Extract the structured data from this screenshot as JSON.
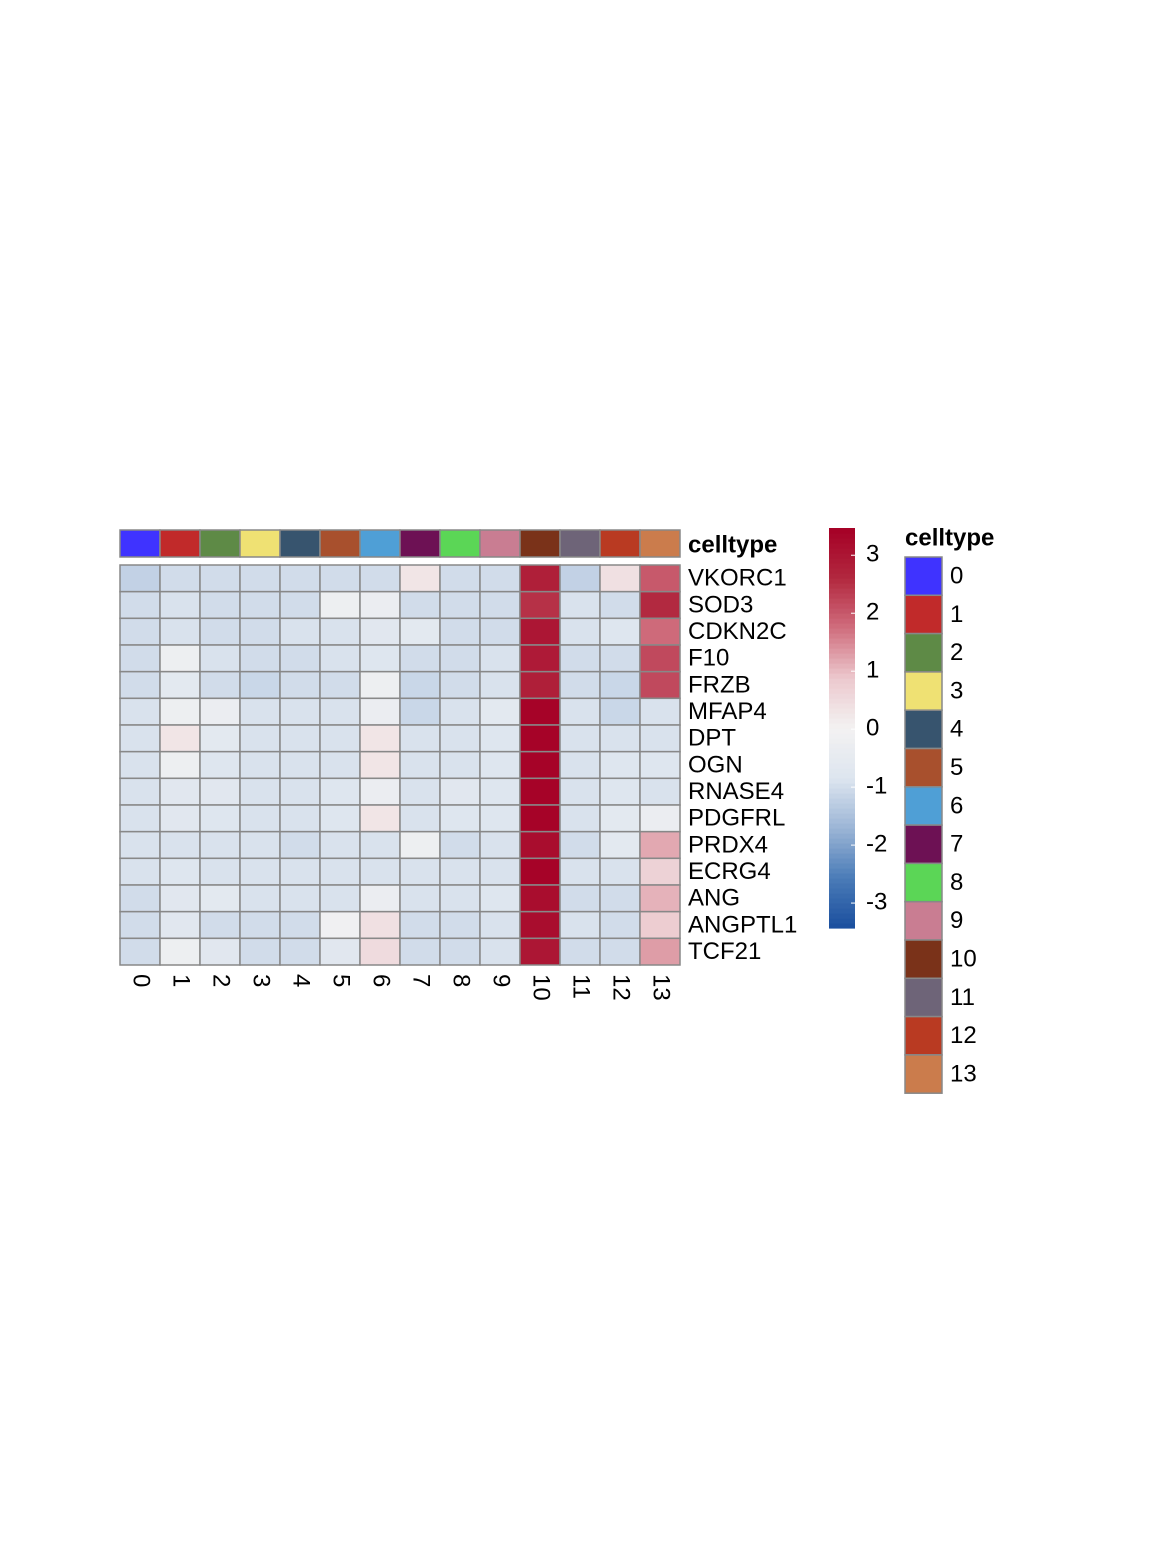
{
  "chart_data": {
    "type": "heatmap",
    "categories": [
      "0",
      "1",
      "2",
      "3",
      "4",
      "5",
      "6",
      "7",
      "8",
      "9",
      "10",
      "11",
      "12",
      "13"
    ],
    "rows": [
      "VKORC1",
      "SOD3",
      "CDKN2C",
      "F10",
      "FRZB",
      "MFAP4",
      "DPT",
      "OGN",
      "RNASE4",
      "PDGFRL",
      "PRDX4",
      "ECRG4",
      "ANG",
      "ANGPTL1",
      "TCF21"
    ],
    "values": [
      [
        -1.2,
        -1.0,
        -1.0,
        -1.0,
        -1.0,
        -1.0,
        -1.0,
        0.3,
        -1.0,
        -1.0,
        2.8,
        -1.2,
        0.4,
        2.0
      ],
      [
        -1.0,
        -0.9,
        -1.0,
        -1.0,
        -1.0,
        -0.2,
        -0.3,
        -1.0,
        -1.0,
        -1.0,
        2.5,
        -0.9,
        -1.0,
        2.6
      ],
      [
        -1.0,
        -0.9,
        -1.0,
        -1.0,
        -0.9,
        -0.9,
        -0.7,
        -0.6,
        -1.0,
        -1.0,
        3.0,
        -0.9,
        -0.8,
        1.8
      ],
      [
        -1.0,
        -0.2,
        -0.9,
        -1.0,
        -1.0,
        -0.9,
        -0.8,
        -1.0,
        -1.0,
        -0.9,
        2.9,
        -1.0,
        -1.0,
        2.2
      ],
      [
        -1.0,
        -0.6,
        -1.0,
        -1.1,
        -1.0,
        -1.0,
        -0.2,
        -1.1,
        -1.0,
        -0.9,
        2.8,
        -1.0,
        -1.1,
        2.2
      ],
      [
        -0.9,
        -0.2,
        -0.3,
        -0.9,
        -0.9,
        -0.9,
        -0.3,
        -1.1,
        -0.9,
        -0.6,
        3.4,
        -0.9,
        -1.1,
        -0.9
      ],
      [
        -0.9,
        0.3,
        -0.6,
        -0.9,
        -0.9,
        -0.9,
        0.3,
        -0.9,
        -0.9,
        -0.8,
        3.4,
        -0.9,
        -0.9,
        -0.9
      ],
      [
        -0.9,
        -0.2,
        -0.8,
        -0.9,
        -0.9,
        -0.9,
        0.3,
        -0.9,
        -0.9,
        -0.8,
        3.4,
        -0.9,
        -0.8,
        -0.8
      ],
      [
        -0.9,
        -0.7,
        -0.7,
        -0.9,
        -0.9,
        -0.8,
        -0.3,
        -0.9,
        -0.7,
        -0.8,
        3.4,
        -0.9,
        -0.8,
        -0.9
      ],
      [
        -0.9,
        -0.7,
        -0.8,
        -0.9,
        -0.9,
        -0.8,
        0.3,
        -0.9,
        -0.8,
        -0.8,
        3.4,
        -0.9,
        -0.6,
        -0.3
      ],
      [
        -0.9,
        -0.9,
        -0.9,
        -0.9,
        -1.0,
        -0.9,
        -0.9,
        -0.2,
        -1.0,
        -0.9,
        3.2,
        -1.0,
        -0.6,
        1.2
      ],
      [
        -0.9,
        -0.8,
        -0.9,
        -0.9,
        -0.9,
        -0.9,
        -0.9,
        -0.9,
        -0.9,
        -0.9,
        3.4,
        -0.9,
        -0.9,
        0.7
      ],
      [
        -1.0,
        -0.7,
        -0.6,
        -0.9,
        -0.9,
        -0.9,
        -0.3,
        -0.9,
        -0.9,
        -0.8,
        3.2,
        -1.0,
        -1.0,
        1.1
      ],
      [
        -1.0,
        -0.7,
        -1.0,
        -1.0,
        -1.0,
        -0.1,
        0.4,
        -1.0,
        -1.0,
        -0.9,
        3.2,
        -0.9,
        -1.0,
        0.8
      ],
      [
        -1.0,
        -0.2,
        -0.7,
        -1.0,
        -1.0,
        -0.7,
        0.5,
        -1.0,
        -1.0,
        -0.9,
        3.0,
        -1.0,
        -1.0,
        1.3
      ]
    ],
    "zlim": [
      -3.43,
      3.47
    ],
    "zticks": [
      3,
      2,
      1,
      0,
      -1,
      -2,
      -3
    ],
    "colorscale": [
      "#1a4e9e",
      "#4a7bb7",
      "#9bb5d6",
      "#dde5ef",
      "#f3f2f2",
      "#ecc9ce",
      "#d06e7e",
      "#b2283f",
      "#a50026"
    ],
    "annotation": {
      "name": "celltype",
      "colors": [
        "#3f33ff",
        "#c12a2a",
        "#5e8a46",
        "#efe173",
        "#37546e",
        "#a8502d",
        "#4f9fd6",
        "#6d1154",
        "#5bd656",
        "#c97d92",
        "#7a3219",
        "#6e6478",
        "#b93a22",
        "#cb7c4c"
      ]
    }
  }
}
